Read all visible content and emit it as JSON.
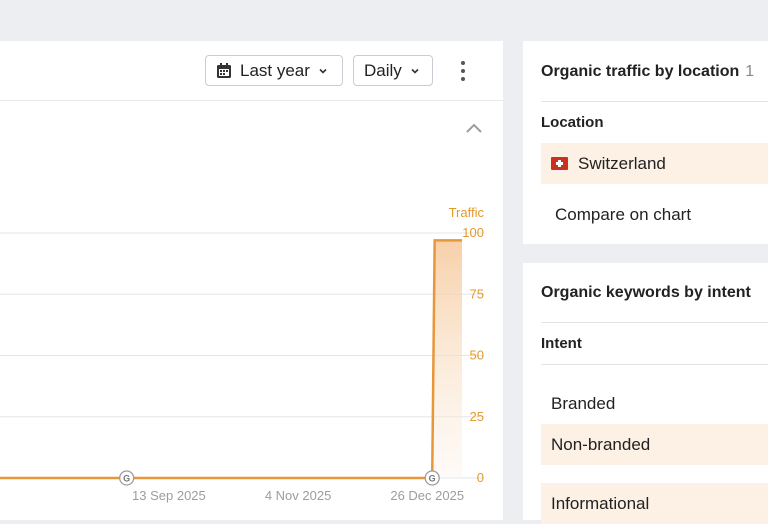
{
  "toolbar": {
    "period_label": "Last year",
    "interval_label": "Daily"
  },
  "chart_data": {
    "type": "area",
    "ylabel": "Traffic",
    "y_ticks": [
      "100",
      "75",
      "50",
      "25",
      "0"
    ],
    "ylim": [
      0,
      100
    ],
    "x_tick_labels": [
      "13 Sep 2025",
      "4 Nov 2025",
      "26 Dec 2025"
    ],
    "x_ticks": [
      "2025-09-13",
      "2025-11-04",
      "2025-12-26"
    ],
    "xlim": [
      "2025-07-07",
      "2026-01-09"
    ],
    "grid": true,
    "series": [
      {
        "color": "#e8963a",
        "points": [
          {
            "x": "2025-07-07",
            "y": 0
          },
          {
            "x": "2025-12-28",
            "y": 0
          },
          {
            "x": "2025-12-29",
            "y": 97
          },
          {
            "x": "2026-01-09",
            "y": 97
          }
        ]
      }
    ],
    "annotations": [
      {
        "x": "2025-08-27",
        "label": "G"
      },
      {
        "x": "2025-12-28",
        "label": "G"
      }
    ]
  },
  "location_card": {
    "title": "Organic traffic by location",
    "count": "1",
    "column": "Location",
    "rows": [
      {
        "name": "Switzerland",
        "flag": "swiss-flag-icon"
      }
    ],
    "compare_label": "Compare on chart"
  },
  "intent_card": {
    "title": "Organic keywords by intent",
    "column": "Intent",
    "rows": [
      {
        "label": "Branded",
        "highlight": false
      },
      {
        "label": "Non-branded",
        "highlight": true
      },
      {
        "label": "Informational",
        "highlight": true
      }
    ]
  },
  "colors": {
    "accent": "#e8963a",
    "highlight": "#fdf1e6",
    "background": "#eceef1"
  }
}
